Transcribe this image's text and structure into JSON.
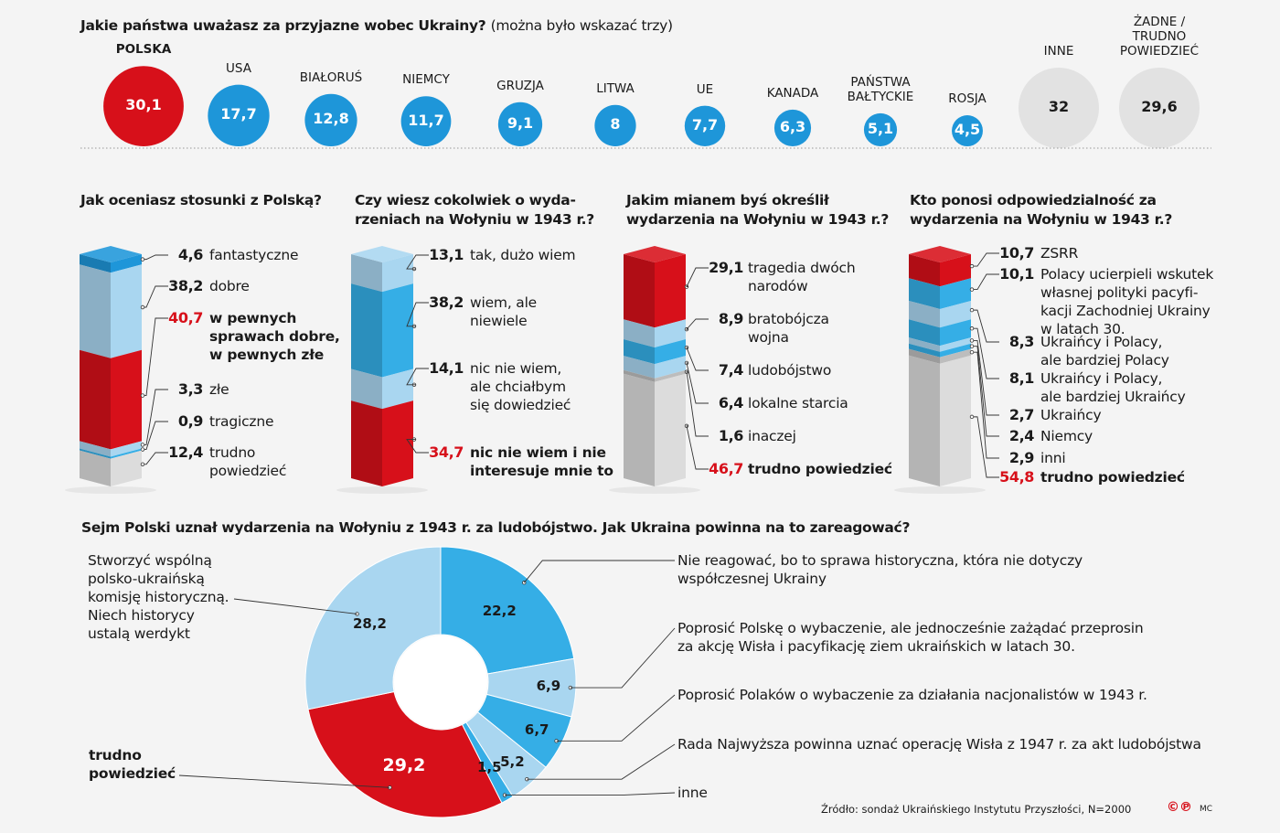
{
  "colors": {
    "red": "#d7101a",
    "blue": "#1e96d9",
    "mid_blue": "#35aee6",
    "light_blue": "#a9d6f0",
    "gray": "#dcdcdc",
    "gray_dark": "#bdbdbd",
    "bubble_gray": "#e2e2e2"
  },
  "chart_data": [
    {
      "type": "bubble",
      "title": "Jakie państwa uważasz za przyjazne wobec Ukrainy?",
      "note": "(można było wskazać trzy)",
      "categories": [
        "POLSKA",
        "USA",
        "BIAŁORUŚ",
        "NIEMCY",
        "GRUZJA",
        "LITWA",
        "UE",
        "KANADA",
        "PAŃSTWA BAŁTYCKIE",
        "ROSJA",
        "INNE",
        "ŻADNE / TRUDNO POWIEDZIEĆ"
      ],
      "values": [
        30.1,
        17.7,
        12.8,
        11.7,
        9.1,
        8,
        7.7,
        6.3,
        5.1,
        4.5,
        32,
        29.6
      ],
      "value_labels": [
        "30,1",
        "17,7",
        "12,8",
        "11,7",
        "9,1",
        "8",
        "7,7",
        "6,3",
        "5,1",
        "4,5",
        "32",
        "29,6"
      ],
      "label_lines": [
        [
          "POLSKA"
        ],
        [
          "USA"
        ],
        [
          "BIAŁORUŚ"
        ],
        [
          "NIEMCY"
        ],
        [
          "GRUZJA"
        ],
        [
          "LITWA"
        ],
        [
          "UE"
        ],
        [
          "KANADA"
        ],
        [
          "PAŃSTWA",
          "BAŁTYCKIE"
        ],
        [
          "ROSJA"
        ],
        [
          "INNE"
        ],
        [
          "ŻADNE /",
          "TRUDNO",
          "POWIEDZIEĆ"
        ]
      ],
      "colors": [
        "red",
        "blue",
        "blue",
        "blue",
        "blue",
        "blue",
        "blue",
        "blue",
        "blue",
        "blue",
        "bubble_gray",
        "bubble_gray"
      ]
    },
    {
      "type": "stacked_bar",
      "title": [
        "Jak oceniasz stosunki z Polską?"
      ],
      "segments": [
        {
          "value": 4.6,
          "label": "4,6",
          "text": [
            "fantastyczne"
          ],
          "color": "blue"
        },
        {
          "value": 38.2,
          "label": "38,2",
          "text": [
            "dobre"
          ],
          "color": "light_blue"
        },
        {
          "value": 40.7,
          "label": "40,7",
          "text": [
            "w pewnych",
            "sprawach dobre,",
            "w pewnych złe"
          ],
          "color": "red",
          "highlight": true
        },
        {
          "value": 3.3,
          "label": "3,3",
          "text": [
            "złe"
          ],
          "color": "light_blue"
        },
        {
          "value": 0.9,
          "label": "0,9",
          "text": [
            "tragiczne"
          ],
          "color": "mid_blue"
        },
        {
          "value": 12.4,
          "label": "12,4",
          "text": [
            "trudno",
            "powiedzieć"
          ],
          "color": "gray"
        }
      ]
    },
    {
      "type": "stacked_bar",
      "title": [
        "Czy wiesz cokolwiek o wyda-",
        "rzeniach na Wołyniu w 1943 r.?"
      ],
      "segments": [
        {
          "value": 13.1,
          "label": "13,1",
          "text": [
            "tak, dużo wiem"
          ],
          "color": "light_blue"
        },
        {
          "value": 38.2,
          "label": "38,2",
          "text": [
            "wiem, ale",
            "niewiele"
          ],
          "color": "mid_blue"
        },
        {
          "value": 14.1,
          "label": "14,1",
          "text": [
            "nic nie wiem,",
            "ale chciałbym",
            "się dowiedzieć"
          ],
          "color": "light_blue"
        },
        {
          "value": 34.7,
          "label": "34,7",
          "text": [
            "nic nie wiem i nie",
            "interesuje mnie to"
          ],
          "color": "red",
          "highlight": true
        }
      ]
    },
    {
      "type": "stacked_bar",
      "title": [
        "Jakim mianem byś określił",
        "wydarzenia na Wołyniu w 1943 r.?"
      ],
      "segments": [
        {
          "value": 29.1,
          "label": "29,1",
          "text": [
            "tragedia dwóch",
            "narodów"
          ],
          "color": "red"
        },
        {
          "value": 8.9,
          "label": "8,9",
          "text": [
            "bratobójcza",
            "wojna"
          ],
          "color": "light_blue"
        },
        {
          "value": 7.4,
          "label": "7,4",
          "text": [
            "ludobójstwo"
          ],
          "color": "mid_blue"
        },
        {
          "value": 6.4,
          "label": "6,4",
          "text": [
            "lokalne starcia"
          ],
          "color": "light_blue"
        },
        {
          "value": 1.6,
          "label": "1,6",
          "text": [
            "inaczej"
          ],
          "color": "gray_dark"
        },
        {
          "value": 46.7,
          "label": "46,7",
          "text": [
            "trudno powiedzieć"
          ],
          "color": "gray",
          "highlight": true
        }
      ]
    },
    {
      "type": "stacked_bar",
      "title": [
        "Kto ponosi odpowiedzialność za",
        "wydarzenia na Wołyniu w 1943 r.?"
      ],
      "segments": [
        {
          "value": 10.7,
          "label": "10,7",
          "text": [
            "ZSRR"
          ],
          "color": "red"
        },
        {
          "value": 10.1,
          "label": "10,1",
          "text": [
            "Polacy ucierpieli wskutek",
            "własnej polityki pacyfi-",
            "kacji Zachodniej Ukrainy",
            "w latach 30."
          ],
          "color": "mid_blue"
        },
        {
          "value": 8.3,
          "label": "8,3",
          "text": [
            "Ukraińcy i Polacy,",
            "ale bardziej Polacy"
          ],
          "color": "light_blue"
        },
        {
          "value": 8.1,
          "label": "8,1",
          "text": [
            "Ukraińcy i Polacy,",
            "ale bardziej Ukraińcy"
          ],
          "color": "mid_blue"
        },
        {
          "value": 2.7,
          "label": "2,7",
          "text": [
            "Ukraińcy"
          ],
          "color": "light_blue"
        },
        {
          "value": 2.4,
          "label": "2,4",
          "text": [
            "Niemcy"
          ],
          "color": "mid_blue"
        },
        {
          "value": 2.9,
          "label": "2,9",
          "text": [
            "inni"
          ],
          "color": "gray_dark"
        },
        {
          "value": 54.8,
          "label": "54,8",
          "text": [
            "trudno powiedzieć"
          ],
          "color": "gray",
          "highlight": true
        }
      ]
    },
    {
      "type": "pie",
      "donut": true,
      "title": "Sejm Polski uznał wydarzenia na Wołyniu z 1943 r. za ludobójstwo. Jak Ukraina powinna na to zareagować?",
      "slices": [
        {
          "value": 22.2,
          "label": "22,2",
          "text": [
            "Nie reagować, bo to sprawa historyczna, która nie dotyczy",
            "współczesnej Ukrainy"
          ],
          "color": "mid_blue"
        },
        {
          "value": 6.9,
          "label": "6,9",
          "text": [
            "Poprosić Polskę o wybaczenie, ale jednocześnie zażądać przeprosin",
            "za akcję Wisła i pacyfikację ziem ukraińskich w latach 30."
          ],
          "color": "light_blue"
        },
        {
          "value": 6.7,
          "label": "6,7",
          "text": [
            "Poprosić Polaków o wybaczenie za działania nacjonalistów w 1943 r."
          ],
          "color": "mid_blue"
        },
        {
          "value": 5.2,
          "label": "5,2",
          "text": [
            "Rada Najwyższa powinna uznać operację Wisła z 1947 r. za akt ludobójstwa"
          ],
          "color": "light_blue"
        },
        {
          "value": 1.5,
          "label": "1,5",
          "text": [
            "inne"
          ],
          "color": "mid_blue"
        },
        {
          "value": 29.2,
          "label": "29,2",
          "text": [
            "trudno",
            "powiedzieć"
          ],
          "color": "red"
        },
        {
          "value": 28.2,
          "label": "28,2",
          "text": [
            "Stworzyć wspólną",
            "polsko-ukraińską",
            "komisję historyczną.",
            "Niech historycy",
            "ustalą werdykt"
          ],
          "color": "light_blue"
        }
      ]
    }
  ],
  "footer": {
    "source": "Źródło: sondaż Ukraińskiego Instytutu Przyszłości, N=2000",
    "logo": "©℗",
    "author": "MC"
  }
}
